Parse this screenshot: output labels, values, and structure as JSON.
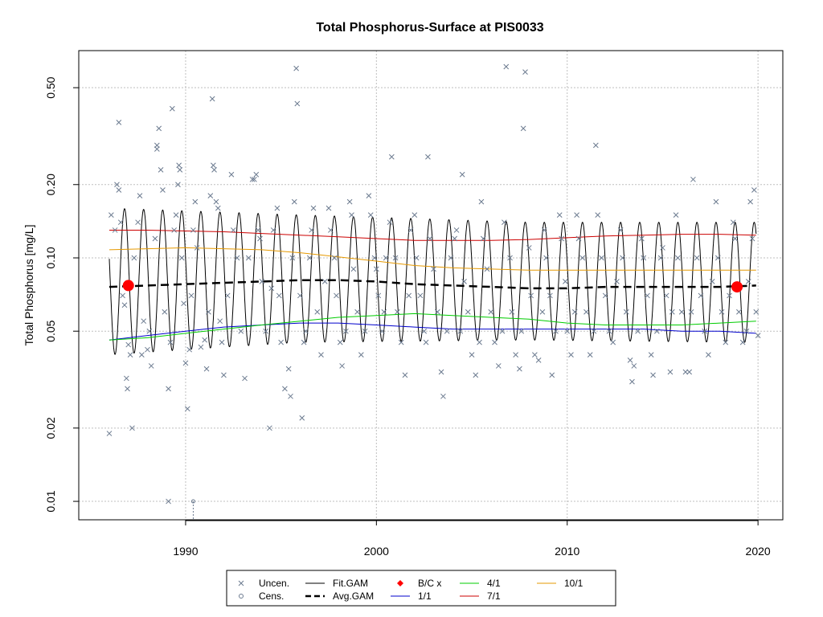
{
  "chart_data": {
    "type": "scatter",
    "title": "Total Phosphorus-Surface at PIS0033",
    "xlabel": "",
    "ylabel": "Total Phosphorus [mg/L]",
    "log_y": true,
    "xlim": [
      1984.4,
      2021.3
    ],
    "ylim": [
      0.0084,
      0.71
    ],
    "grid": true,
    "x_ticks": [
      1990,
      2000,
      2010,
      2020
    ],
    "x_tick_labels": [
      "1990",
      "2000",
      "2010",
      "2020"
    ],
    "y_ticks": [
      0.01,
      0.02,
      0.05,
      0.1,
      0.2,
      0.5
    ],
    "y_tick_labels": [
      "0.01",
      "0.02",
      "0.05",
      "0.10",
      "0.20",
      "0.50"
    ],
    "legend_position": "bottom",
    "legend": [
      {
        "label": "Uncen.",
        "symbol": "x",
        "color": "#6b7a8f"
      },
      {
        "label": "Cens.",
        "symbol": "o",
        "color": "#6b7a8f"
      },
      {
        "label": "Fit.GAM",
        "symbol": "line",
        "color": "#000000"
      },
      {
        "label": "Avg.GAM",
        "symbol": "dashed-line",
        "color": "#000000"
      },
      {
        "label": "B/C x",
        "symbol": "diamond",
        "color": "#ff0000"
      },
      {
        "label": "1/1",
        "symbol": "line",
        "color": "#0000cc"
      },
      {
        "label": "4/1",
        "symbol": "line",
        "color": "#00cc00"
      },
      {
        "label": "7/1",
        "symbol": "line",
        "color": "#cc0000"
      },
      {
        "label": "10/1",
        "symbol": "line",
        "color": "#e69900"
      }
    ],
    "colors": {
      "uncensored": "#6b7a8f",
      "fit_gam": "#000000",
      "avg_gam": "#000000",
      "baseline_current": "#ff0000",
      "d_1_1": "#0000cc",
      "d_4_1": "#00cc00",
      "d_7_1": "#cc0000",
      "d_10_1": "#e69900",
      "grid": "#bfbfbf"
    },
    "uncensored_points": [
      [
        1986.0,
        0.019
      ],
      [
        1986.1,
        0.15
      ],
      [
        1986.3,
        0.13
      ],
      [
        1986.4,
        0.2
      ],
      [
        1986.5,
        0.36
      ],
      [
        1986.5,
        0.19
      ],
      [
        1986.6,
        0.14
      ],
      [
        1986.7,
        0.07
      ],
      [
        1986.8,
        0.064
      ],
      [
        1986.9,
        0.032
      ],
      [
        1986.95,
        0.029
      ],
      [
        1987.0,
        0.044
      ],
      [
        1987.1,
        0.04
      ],
      [
        1987.2,
        0.02
      ],
      [
        1987.3,
        0.1
      ],
      [
        1987.5,
        0.14
      ],
      [
        1987.6,
        0.18
      ],
      [
        1987.7,
        0.04
      ],
      [
        1987.8,
        0.055
      ],
      [
        1988.0,
        0.042
      ],
      [
        1988.1,
        0.05
      ],
      [
        1988.2,
        0.036
      ],
      [
        1988.4,
        0.12
      ],
      [
        1988.5,
        0.29
      ],
      [
        1988.5,
        0.28
      ],
      [
        1988.6,
        0.34
      ],
      [
        1988.7,
        0.23
      ],
      [
        1988.8,
        0.19
      ],
      [
        1988.9,
        0.06
      ],
      [
        1989.1,
        0.029
      ],
      [
        1989.2,
        0.045
      ],
      [
        1989.3,
        0.41
      ],
      [
        1989.4,
        0.13
      ],
      [
        1989.5,
        0.15
      ],
      [
        1989.6,
        0.2
      ],
      [
        1989.65,
        0.24
      ],
      [
        1989.7,
        0.23
      ],
      [
        1989.8,
        0.1
      ],
      [
        1989.9,
        0.065
      ],
      [
        1990.0,
        0.037
      ],
      [
        1990.1,
        0.024
      ],
      [
        1990.2,
        0.042
      ],
      [
        1990.3,
        0.07
      ],
      [
        1990.4,
        0.13
      ],
      [
        1990.5,
        0.17
      ],
      [
        1990.6,
        0.11
      ],
      [
        1990.8,
        0.043
      ],
      [
        1991.0,
        0.046
      ],
      [
        1991.1,
        0.035
      ],
      [
        1991.2,
        0.06
      ],
      [
        1991.3,
        0.18
      ],
      [
        1991.4,
        0.45
      ],
      [
        1991.45,
        0.24
      ],
      [
        1991.5,
        0.23
      ],
      [
        1991.6,
        0.17
      ],
      [
        1991.7,
        0.16
      ],
      [
        1991.8,
        0.055
      ],
      [
        1991.9,
        0.045
      ],
      [
        1992.0,
        0.033
      ],
      [
        1992.2,
        0.07
      ],
      [
        1992.4,
        0.22
      ],
      [
        1992.5,
        0.13
      ],
      [
        1992.7,
        0.1
      ],
      [
        1992.9,
        0.05
      ],
      [
        1993.1,
        0.032
      ],
      [
        1993.3,
        0.1
      ],
      [
        1993.5,
        0.21
      ],
      [
        1993.6,
        0.21
      ],
      [
        1993.7,
        0.22
      ],
      [
        1993.8,
        0.13
      ],
      [
        1993.9,
        0.12
      ],
      [
        1994.0,
        0.08
      ],
      [
        1994.2,
        0.05
      ],
      [
        1994.4,
        0.02
      ],
      [
        1994.5,
        0.075
      ],
      [
        1994.6,
        0.13
      ],
      [
        1994.8,
        0.16
      ],
      [
        1994.9,
        0.07
      ],
      [
        1995.0,
        0.045
      ],
      [
        1995.2,
        0.029
      ],
      [
        1995.4,
        0.035
      ],
      [
        1995.5,
        0.027
      ],
      [
        1995.6,
        0.1
      ],
      [
        1995.7,
        0.17
      ],
      [
        1995.8,
        0.6
      ],
      [
        1995.85,
        0.43
      ],
      [
        1996.0,
        0.07
      ],
      [
        1996.1,
        0.022
      ],
      [
        1996.2,
        0.045
      ],
      [
        1996.3,
        0.05
      ],
      [
        1996.5,
        0.1
      ],
      [
        1996.6,
        0.13
      ],
      [
        1996.7,
        0.16
      ],
      [
        1996.9,
        0.06
      ],
      [
        1997.1,
        0.04
      ],
      [
        1997.3,
        0.08
      ],
      [
        1997.5,
        0.16
      ],
      [
        1997.6,
        0.13
      ],
      [
        1997.8,
        0.1
      ],
      [
        1997.9,
        0.07
      ],
      [
        1998.1,
        0.045
      ],
      [
        1998.2,
        0.036
      ],
      [
        1998.4,
        0.05
      ],
      [
        1998.6,
        0.17
      ],
      [
        1998.7,
        0.15
      ],
      [
        1998.8,
        0.09
      ],
      [
        1999.0,
        0.06
      ],
      [
        1999.2,
        0.04
      ],
      [
        1999.4,
        0.05
      ],
      [
        1999.6,
        0.18
      ],
      [
        1999.7,
        0.15
      ],
      [
        1999.9,
        0.1
      ],
      [
        2000.0,
        0.09
      ],
      [
        2000.1,
        0.07
      ],
      [
        2000.3,
        0.05
      ],
      [
        2000.4,
        0.06
      ],
      [
        2000.5,
        0.1
      ],
      [
        2000.7,
        0.14
      ],
      [
        2000.8,
        0.26
      ],
      [
        2001.0,
        0.1
      ],
      [
        2001.1,
        0.06
      ],
      [
        2001.3,
        0.045
      ],
      [
        2001.5,
        0.033
      ],
      [
        2001.7,
        0.07
      ],
      [
        2001.8,
        0.13
      ],
      [
        2002.0,
        0.15
      ],
      [
        2002.1,
        0.1
      ],
      [
        2002.3,
        0.07
      ],
      [
        2002.5,
        0.05
      ],
      [
        2002.6,
        0.045
      ],
      [
        2002.7,
        0.26
      ],
      [
        2002.8,
        0.12
      ],
      [
        2003.0,
        0.09
      ],
      [
        2003.2,
        0.06
      ],
      [
        2003.4,
        0.034
      ],
      [
        2003.5,
        0.027
      ],
      [
        2003.7,
        0.05
      ],
      [
        2003.9,
        0.1
      ],
      [
        2004.1,
        0.12
      ],
      [
        2004.2,
        0.13
      ],
      [
        2004.4,
        0.05
      ],
      [
        2004.5,
        0.22
      ],
      [
        2004.6,
        0.08
      ],
      [
        2004.8,
        0.06
      ],
      [
        2005.0,
        0.04
      ],
      [
        2005.2,
        0.033
      ],
      [
        2005.4,
        0.045
      ],
      [
        2005.5,
        0.17
      ],
      [
        2005.6,
        0.12
      ],
      [
        2005.8,
        0.09
      ],
      [
        2006.0,
        0.06
      ],
      [
        2006.2,
        0.045
      ],
      [
        2006.4,
        0.036
      ],
      [
        2006.6,
        0.05
      ],
      [
        2006.7,
        0.14
      ],
      [
        2006.8,
        0.61
      ],
      [
        2007.0,
        0.1
      ],
      [
        2007.1,
        0.06
      ],
      [
        2007.3,
        0.04
      ],
      [
        2007.5,
        0.035
      ],
      [
        2007.6,
        0.05
      ],
      [
        2007.7,
        0.34
      ],
      [
        2007.8,
        0.58
      ],
      [
        2008.0,
        0.11
      ],
      [
        2008.1,
        0.07
      ],
      [
        2008.3,
        0.04
      ],
      [
        2008.5,
        0.038
      ],
      [
        2008.7,
        0.06
      ],
      [
        2008.8,
        0.13
      ],
      [
        2008.9,
        0.1
      ],
      [
        2009.1,
        0.07
      ],
      [
        2009.2,
        0.033
      ],
      [
        2009.4,
        0.05
      ],
      [
        2009.6,
        0.15
      ],
      [
        2009.7,
        0.12
      ],
      [
        2009.9,
        0.08
      ],
      [
        2010.0,
        0.05
      ],
      [
        2010.2,
        0.04
      ],
      [
        2010.4,
        0.06
      ],
      [
        2010.5,
        0.15
      ],
      [
        2010.6,
        0.12
      ],
      [
        2010.8,
        0.1
      ],
      [
        2011.0,
        0.06
      ],
      [
        2011.2,
        0.04
      ],
      [
        2011.4,
        0.05
      ],
      [
        2011.5,
        0.29
      ],
      [
        2011.6,
        0.15
      ],
      [
        2011.8,
        0.1
      ],
      [
        2012.0,
        0.07
      ],
      [
        2012.2,
        0.05
      ],
      [
        2012.4,
        0.045
      ],
      [
        2012.6,
        0.08
      ],
      [
        2012.8,
        0.13
      ],
      [
        2012.9,
        0.1
      ],
      [
        2013.1,
        0.06
      ],
      [
        2013.3,
        0.038
      ],
      [
        2013.4,
        0.031
      ],
      [
        2013.5,
        0.036
      ],
      [
        2013.7,
        0.05
      ],
      [
        2013.9,
        0.12
      ],
      [
        2014.0,
        0.1
      ],
      [
        2014.2,
        0.07
      ],
      [
        2014.4,
        0.04
      ],
      [
        2014.5,
        0.033
      ],
      [
        2014.7,
        0.05
      ],
      [
        2014.9,
        0.1
      ],
      [
        2015.0,
        0.11
      ],
      [
        2015.2,
        0.07
      ],
      [
        2015.4,
        0.034
      ],
      [
        2015.5,
        0.06
      ],
      [
        2015.7,
        0.15
      ],
      [
        2015.8,
        0.1
      ],
      [
        2016.0,
        0.06
      ],
      [
        2016.2,
        0.034
      ],
      [
        2016.4,
        0.034
      ],
      [
        2016.5,
        0.06
      ],
      [
        2016.6,
        0.21
      ],
      [
        2016.8,
        0.1
      ],
      [
        2017.0,
        0.07
      ],
      [
        2017.2,
        0.05
      ],
      [
        2017.4,
        0.04
      ],
      [
        2017.6,
        0.08
      ],
      [
        2017.8,
        0.17
      ],
      [
        2017.9,
        0.1
      ],
      [
        2018.1,
        0.06
      ],
      [
        2018.3,
        0.045
      ],
      [
        2018.5,
        0.07
      ],
      [
        2018.7,
        0.14
      ],
      [
        2018.8,
        0.12
      ],
      [
        2019.0,
        0.06
      ],
      [
        2019.2,
        0.045
      ],
      [
        2019.4,
        0.05
      ],
      [
        2019.5,
        0.08
      ],
      [
        2019.6,
        0.17
      ],
      [
        2019.7,
        0.12
      ],
      [
        2019.8,
        0.19
      ],
      [
        2019.9,
        0.06
      ],
      [
        2020.0,
        0.048
      ]
    ],
    "censored_points": [
      [
        1990.4,
        0.01
      ]
    ],
    "censored_marker_point": [
      [
        1989.1,
        0.01
      ]
    ],
    "fit_gam": {
      "x_start": 1986.0,
      "x_end": 2019.9,
      "phase": 0.55,
      "upper_1986": 0.16,
      "lower_1986": 0.04,
      "upper_1996": 0.15,
      "lower_1996": 0.045,
      "upper_2008": 0.14,
      "lower_2008": 0.046,
      "upper_2019": 0.14,
      "lower_2019": 0.045
    },
    "avg_gam": {
      "x": [
        1986,
        1988,
        1990,
        1992,
        1994,
        1996,
        1998,
        2000,
        2002,
        2004,
        2006,
        2008,
        2010,
        2012,
        2014,
        2016,
        2018,
        2019.9
      ],
      "y": [
        0.076,
        0.077,
        0.078,
        0.079,
        0.08,
        0.081,
        0.081,
        0.08,
        0.078,
        0.077,
        0.076,
        0.075,
        0.075,
        0.076,
        0.076,
        0.076,
        0.076,
        0.077
      ]
    },
    "series": [
      {
        "name": "1/1",
        "x": [
          1986,
          1988,
          1990,
          1992,
          1994,
          1996,
          1998,
          2000,
          2002,
          2004,
          2006,
          2008,
          2010,
          2012,
          2014,
          2016,
          2018,
          2019.9
        ],
        "y": [
          0.046,
          0.048,
          0.05,
          0.052,
          0.053,
          0.054,
          0.054,
          0.053,
          0.052,
          0.051,
          0.051,
          0.051,
          0.051,
          0.051,
          0.051,
          0.05,
          0.05,
          0.049
        ]
      },
      {
        "name": "4/1",
        "x": [
          1986,
          1988,
          1990,
          1992,
          1994,
          1996,
          1998,
          2000,
          2002,
          2004,
          2006,
          2008,
          2010,
          2012,
          2014,
          2016,
          2018,
          2019.9
        ],
        "y": [
          0.046,
          0.047,
          0.049,
          0.051,
          0.053,
          0.055,
          0.057,
          0.058,
          0.059,
          0.058,
          0.057,
          0.056,
          0.054,
          0.053,
          0.053,
          0.053,
          0.054,
          0.055
        ]
      },
      {
        "name": "7/1",
        "x": [
          1986,
          1988,
          1990,
          1992,
          1994,
          1996,
          1998,
          2000,
          2002,
          2004,
          2006,
          2008,
          2010,
          2012,
          2014,
          2016,
          2018,
          2019.9
        ],
        "y": [
          0.13,
          0.13,
          0.129,
          0.128,
          0.126,
          0.124,
          0.122,
          0.12,
          0.118,
          0.118,
          0.118,
          0.119,
          0.121,
          0.123,
          0.124,
          0.125,
          0.125,
          0.124
        ]
      },
      {
        "name": "10/1",
        "x": [
          1986,
          1988,
          1990,
          1992,
          1994,
          1996,
          1998,
          2000,
          2002,
          2004,
          2006,
          2008,
          2010,
          2012,
          2014,
          2016,
          2018,
          2019.9
        ],
        "y": [
          0.108,
          0.109,
          0.11,
          0.109,
          0.108,
          0.105,
          0.101,
          0.097,
          0.093,
          0.091,
          0.09,
          0.089,
          0.089,
          0.089,
          0.089,
          0.089,
          0.089,
          0.089
        ]
      }
    ],
    "baseline_current": [
      [
        1987.0,
        0.077
      ],
      [
        2018.9,
        0.076
      ]
    ]
  }
}
